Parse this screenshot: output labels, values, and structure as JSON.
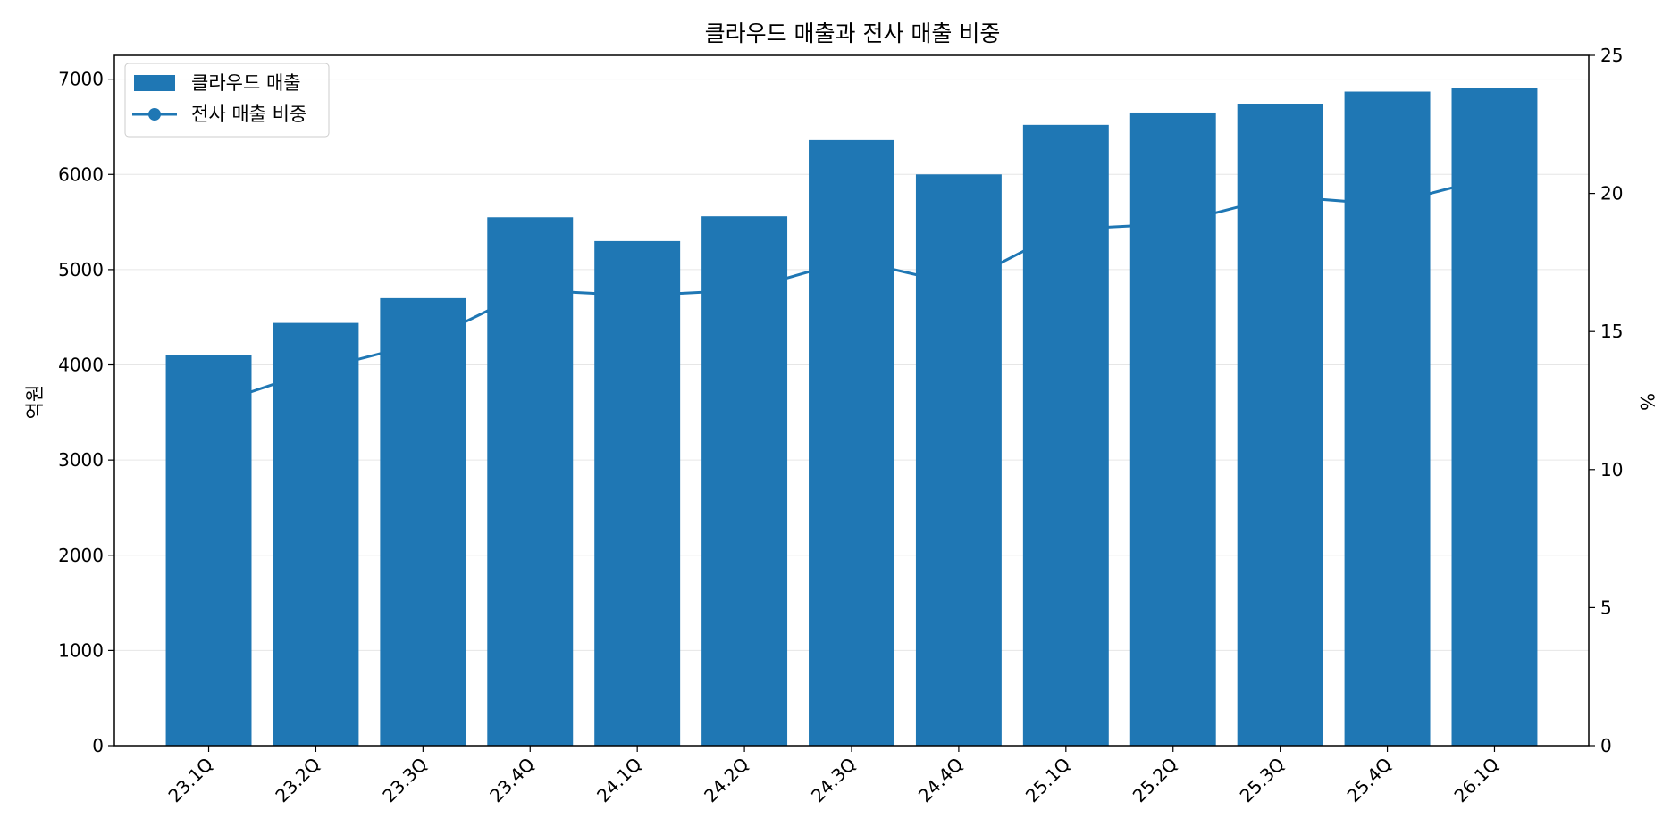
{
  "chart_data": {
    "type": "bar",
    "title": "클라우드 매출과 전사 매출 비중",
    "xlabel": "",
    "ylabel": "억원",
    "y2label": "%",
    "ylim": [
      0,
      7250
    ],
    "y2lim": [
      0,
      25
    ],
    "yticks": [
      0,
      1000,
      2000,
      3000,
      4000,
      5000,
      6000,
      7000
    ],
    "y2ticks": [
      0,
      5,
      10,
      15,
      20,
      25
    ],
    "grid": "horizontal",
    "legend_position": "top-left",
    "categories": [
      "23.1Q",
      "23.2Q",
      "23.3Q",
      "23.4Q",
      "24.1Q",
      "24.2Q",
      "24.3Q",
      "24.4Q",
      "25.1Q",
      "25.2Q",
      "25.3Q",
      "25.4Q",
      "26.1Q"
    ],
    "series": [
      {
        "name": "클라우드 매출",
        "type": "bar",
        "axis": "left",
        "color": "#1f77b4",
        "values": [
          4100,
          4440,
          4700,
          5550,
          5300,
          5560,
          6360,
          6000,
          6520,
          6650,
          6740,
          6870,
          6910
        ]
      },
      {
        "name": "전사 매출 비중",
        "type": "line",
        "axis": "right",
        "color": "#1f77b4",
        "marker": "circle",
        "values": [
          12.3,
          13.6,
          14.6,
          16.5,
          16.3,
          16.5,
          17.6,
          16.7,
          18.7,
          18.9,
          19.9,
          19.6,
          20.6
        ]
      }
    ]
  }
}
